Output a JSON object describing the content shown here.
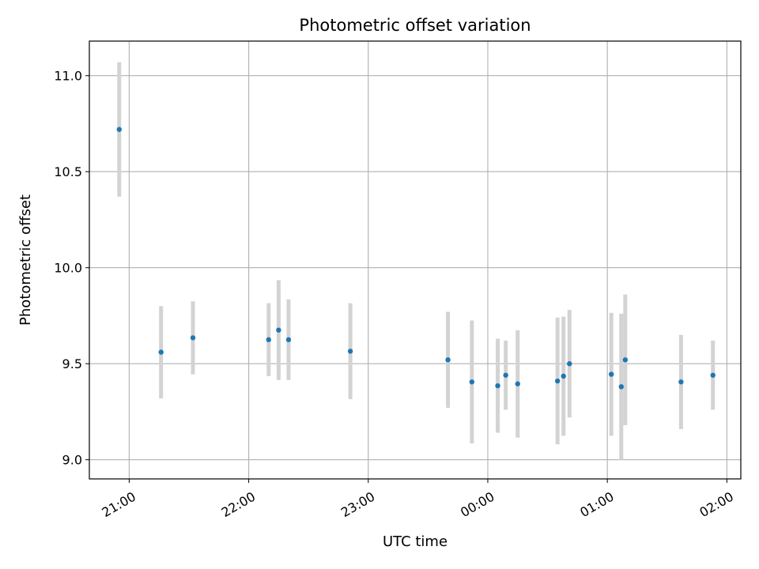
{
  "chart_data": {
    "type": "scatter",
    "title": "Photometric offset variation",
    "xlabel": "UTC time",
    "ylabel": "Photometric offset",
    "x_axis": "time",
    "xlim": [
      "20:40",
      "02:07"
    ],
    "ylim": [
      8.9,
      11.18
    ],
    "grid": true,
    "x_ticks": [
      "21:00",
      "22:00",
      "23:00",
      "00:00",
      "01:00",
      "02:00"
    ],
    "y_ticks": [
      "9.0",
      "9.5",
      "10.0",
      "10.5",
      "11.0"
    ],
    "point_color": "#1f77b4",
    "errorbar_color": "#d3d3d3",
    "points": [
      {
        "time": "20:55",
        "y": 10.72,
        "err": 0.35
      },
      {
        "time": "21:16",
        "y": 9.56,
        "err": 0.24
      },
      {
        "time": "21:32",
        "y": 9.635,
        "err": 0.19
      },
      {
        "time": "22:10",
        "y": 9.625,
        "err": 0.19
      },
      {
        "time": "22:15",
        "y": 9.675,
        "err": 0.26
      },
      {
        "time": "22:20",
        "y": 9.625,
        "err": 0.21
      },
      {
        "time": "22:51",
        "y": 9.565,
        "err": 0.25
      },
      {
        "time": "23:40",
        "y": 9.52,
        "err": 0.25
      },
      {
        "time": "23:52",
        "y": 9.405,
        "err": 0.32
      },
      {
        "time": "00:05",
        "y": 9.385,
        "err": 0.245
      },
      {
        "time": "00:09",
        "y": 9.44,
        "err": 0.18
      },
      {
        "time": "00:15",
        "y": 9.395,
        "err": 0.28
      },
      {
        "time": "00:35",
        "y": 9.41,
        "err": 0.33
      },
      {
        "time": "00:38",
        "y": 9.435,
        "err": 0.31
      },
      {
        "time": "00:41",
        "y": 9.5,
        "err": 0.28
      },
      {
        "time": "01:02",
        "y": 9.445,
        "err": 0.32
      },
      {
        "time": "01:07",
        "y": 9.38,
        "err": 0.38
      },
      {
        "time": "01:09",
        "y": 9.52,
        "err": 0.34
      },
      {
        "time": "01:37",
        "y": 9.405,
        "err": 0.245
      },
      {
        "time": "01:53",
        "y": 9.44,
        "err": 0.18
      }
    ]
  }
}
